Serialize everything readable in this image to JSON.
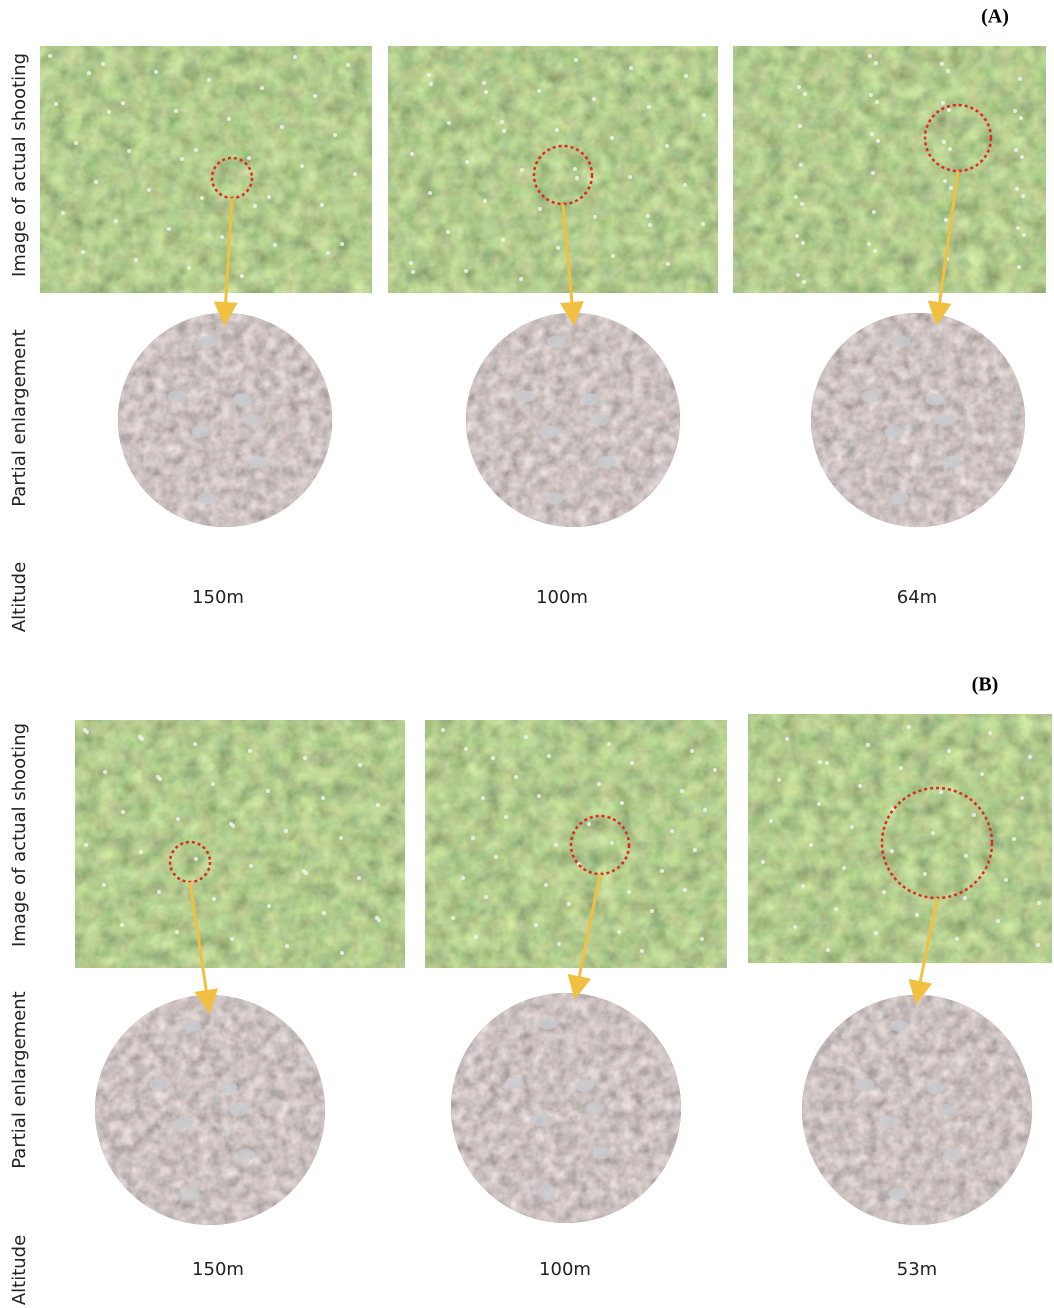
{
  "panels": [
    {
      "label": "(A)",
      "row_labels": [
        "Image of actual shooting",
        "Partial enlargement",
        "Altitude"
      ],
      "altitudes": [
        "150m",
        "100m",
        "64m"
      ]
    },
    {
      "label": "(B)",
      "row_labels": [
        "Image of actual shooting",
        "Partial enlargement",
        "Altitude"
      ],
      "altitudes": [
        "150m",
        "100m",
        "53m"
      ]
    }
  ]
}
